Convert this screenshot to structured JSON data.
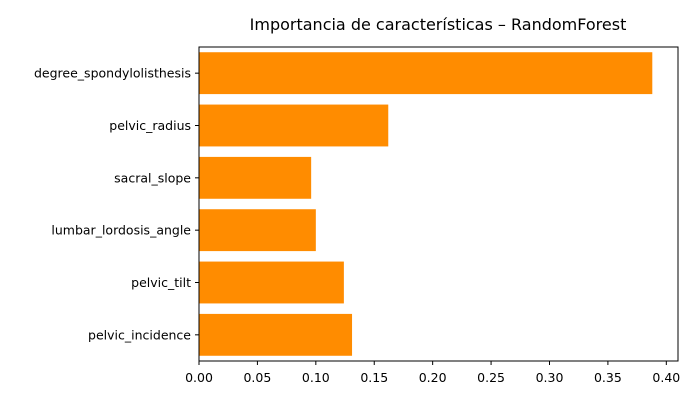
{
  "chart_data": {
    "type": "bar",
    "orientation": "horizontal",
    "title": "Importancia de características – RandomForest",
    "xlabel": "",
    "ylabel": "",
    "categories": [
      "pelvic_incidence",
      "pelvic_tilt",
      "lumbar_lordosis_angle",
      "sacral_slope",
      "pelvic_radius",
      "degree_spondylolisthesis"
    ],
    "values": [
      0.131,
      0.124,
      0.1,
      0.096,
      0.162,
      0.388
    ],
    "xlim": [
      0,
      0.41
    ],
    "xticks": [
      "0.00",
      "0.05",
      "0.10",
      "0.15",
      "0.20",
      "0.25",
      "0.30",
      "0.35",
      "0.40"
    ],
    "bar_color": "#ff8c00",
    "grid": false,
    "legend": null
  }
}
